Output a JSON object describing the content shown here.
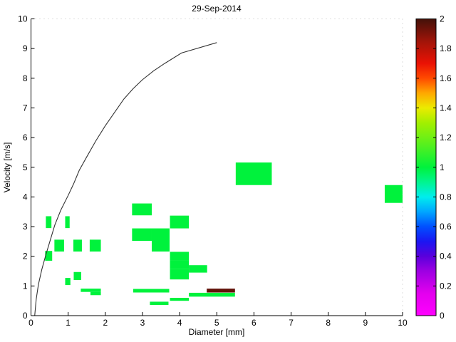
{
  "title": "29-Sep-2014",
  "chart_data": {
    "type": "heatmap",
    "title": "29-Sep-2014",
    "xlabel": "Diameter [mm]",
    "ylabel": "Velocity [m/s]",
    "xlim": [
      0,
      10
    ],
    "ylim": [
      0,
      10
    ],
    "xticks": [
      0,
      1,
      2,
      3,
      4,
      5,
      6,
      7,
      8,
      9,
      10
    ],
    "yticks": [
      0,
      1,
      2,
      3,
      4,
      5,
      6,
      7,
      8,
      9,
      10
    ],
    "grid": false,
    "legend_position": "none",
    "colorbar": {
      "min": 0,
      "max": 2,
      "ticks": [
        0,
        0.2,
        0.4,
        0.6,
        0.8,
        1,
        1.2,
        1.4,
        1.6,
        1.8,
        2
      ],
      "tick_labels": [
        "0",
        "0.2",
        "0.4",
        "0.6",
        "0.8",
        "1",
        "1.2",
        "1.4",
        "1.6",
        "1.8",
        "2"
      ],
      "stops": [
        [
          0.0,
          "#ff00ff"
        ],
        [
          0.15,
          "#e300ee"
        ],
        [
          0.3,
          "#9d00e2"
        ],
        [
          0.4,
          "#5a00dc"
        ],
        [
          0.5,
          "#1b16f2"
        ],
        [
          0.6,
          "#0050ff"
        ],
        [
          0.7,
          "#00a6ff"
        ],
        [
          0.8,
          "#00eded"
        ],
        [
          0.9,
          "#00f58f"
        ],
        [
          1.0,
          "#00f23c"
        ],
        [
          1.15,
          "#55f01e"
        ],
        [
          1.3,
          "#a3ef00"
        ],
        [
          1.4,
          "#ebeb00"
        ],
        [
          1.5,
          "#ffa800"
        ],
        [
          1.6,
          "#ff4a00"
        ],
        [
          1.7,
          "#ea1204"
        ],
        [
          1.85,
          "#a01409"
        ],
        [
          2.0,
          "#431109"
        ]
      ]
    },
    "curve": {
      "name": "terminal-velocity-curve",
      "color": "#333333",
      "points": [
        [
          0.1,
          0.0
        ],
        [
          0.14,
          0.55
        ],
        [
          0.2,
          1.05
        ],
        [
          0.29,
          1.55
        ],
        [
          0.4,
          2.05
        ],
        [
          0.52,
          2.55
        ],
        [
          0.64,
          3.05
        ],
        [
          0.8,
          3.55
        ],
        [
          1.0,
          4.05
        ],
        [
          1.15,
          4.45
        ],
        [
          1.3,
          4.9
        ],
        [
          1.5,
          5.35
        ],
        [
          1.75,
          5.9
        ],
        [
          2.0,
          6.4
        ],
        [
          2.25,
          6.85
        ],
        [
          2.5,
          7.3
        ],
        [
          2.75,
          7.65
        ],
        [
          3.0,
          7.95
        ],
        [
          3.3,
          8.25
        ],
        [
          3.6,
          8.5
        ],
        [
          4.05,
          8.85
        ],
        [
          5.0,
          9.2
        ]
      ]
    },
    "cells": [
      {
        "d": [
          0.4,
          0.55
        ],
        "v": [
          2.95,
          3.35
        ],
        "value": 1
      },
      {
        "d": [
          0.92,
          1.04
        ],
        "v": [
          2.95,
          3.35
        ],
        "value": 1
      },
      {
        "d": [
          0.63,
          0.89
        ],
        "v": [
          2.16,
          2.56
        ],
        "value": 1
      },
      {
        "d": [
          0.38,
          0.57
        ],
        "v": [
          1.85,
          2.18
        ],
        "value": 1
      },
      {
        "d": [
          1.14,
          1.37
        ],
        "v": [
          2.16,
          2.56
        ],
        "value": 1
      },
      {
        "d": [
          1.58,
          1.88
        ],
        "v": [
          2.16,
          2.56
        ],
        "value": 1
      },
      {
        "d": [
          0.92,
          1.06
        ],
        "v": [
          1.03,
          1.27
        ],
        "value": 1
      },
      {
        "d": [
          1.15,
          1.35
        ],
        "v": [
          1.2,
          1.47
        ],
        "value": 1
      },
      {
        "d": [
          2.72,
          3.25
        ],
        "v": [
          3.38,
          3.78
        ],
        "value": 1
      },
      {
        "d": [
          3.74,
          4.25
        ],
        "v": [
          2.94,
          3.37
        ],
        "value": 1
      },
      {
        "d": [
          2.72,
          3.25
        ],
        "v": [
          2.52,
          2.94
        ],
        "value": 1
      },
      {
        "d": [
          3.25,
          3.73
        ],
        "v": [
          2.16,
          2.94
        ],
        "value": 1
      },
      {
        "d": [
          3.74,
          4.25
        ],
        "v": [
          1.85,
          2.15
        ],
        "value": 1
      },
      {
        "d": [
          3.74,
          4.25
        ],
        "v": [
          1.58,
          1.85
        ],
        "value": 1
      },
      {
        "d": [
          3.74,
          4.25
        ],
        "v": [
          1.22,
          1.58
        ],
        "value": 1
      },
      {
        "d": [
          4.25,
          4.74
        ],
        "v": [
          1.45,
          1.7
        ],
        "value": 1
      },
      {
        "d": [
          1.34,
          1.88
        ],
        "v": [
          0.8,
          0.91
        ],
        "value": 1
      },
      {
        "d": [
          1.6,
          1.88
        ],
        "v": [
          0.69,
          0.8
        ],
        "value": 1
      },
      {
        "d": [
          2.75,
          3.72
        ],
        "v": [
          0.78,
          0.9
        ],
        "value": 1
      },
      {
        "d": [
          3.2,
          3.7
        ],
        "v": [
          0.36,
          0.47
        ],
        "value": 1
      },
      {
        "d": [
          3.74,
          4.25
        ],
        "v": [
          0.5,
          0.6
        ],
        "value": 1
      },
      {
        "d": [
          4.25,
          5.49
        ],
        "v": [
          0.64,
          0.77
        ],
        "value": 1
      },
      {
        "d": [
          4.73,
          5.49
        ],
        "v": [
          0.78,
          0.91
        ],
        "value": 1.95
      },
      {
        "d": [
          5.51,
          6.48
        ],
        "v": [
          4.4,
          5.16
        ],
        "value": 1
      },
      {
        "d": [
          9.52,
          10.0
        ],
        "v": [
          3.8,
          4.4
        ],
        "value": 1
      }
    ]
  }
}
